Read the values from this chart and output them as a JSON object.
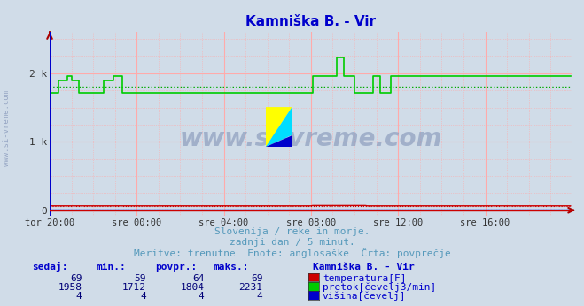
{
  "title": "Kamniška B. - Vir",
  "title_color": "#0000cc",
  "bg_color": "#d0dce8",
  "xticklabels": [
    "tor 20:00",
    "sre 00:00",
    "sre 04:00",
    "sre 08:00",
    "sre 12:00",
    "sre 16:00"
  ],
  "ylim": [
    -80,
    2600
  ],
  "xlim": [
    0,
    288
  ],
  "arrow_color": "#aa0000",
  "subtitle1": "Slovenija / reke in morje.",
  "subtitle2": "zadnji dan / 5 minut.",
  "subtitle3": "Meritve: trenutne  Enote: anglosaške  Črta: povprečje",
  "subtitle_color": "#5599bb",
  "table_header_color": "#0000cc",
  "table_value_color": "#000077",
  "table_headers": [
    "sedaj:",
    "min.:",
    "povpr.:",
    "maks.:"
  ],
  "legend_title": "Kamniška B. - Vir",
  "legend_items": [
    {
      "label": "temperatura[F]",
      "color": "#cc0000"
    },
    {
      "label": "pretok[čevelj3/min]",
      "color": "#00cc00"
    },
    {
      "label": "višina[čevelj]",
      "color": "#0000cc"
    }
  ],
  "table_rows": [
    {
      "sedaj": "69",
      "min": "59",
      "povpr": "64",
      "maks": "69"
    },
    {
      "sedaj": "1958",
      "min": "1712",
      "povpr": "1804",
      "maks": "2231"
    },
    {
      "sedaj": "4",
      "min": "4",
      "povpr": "4",
      "maks": "4"
    }
  ],
  "n_points": 288,
  "avg_flow": 1804,
  "avg_temp": 64,
  "avg_height": 4,
  "watermark": "www.si-vreme.com",
  "left_label": "www.si-vreme.com"
}
